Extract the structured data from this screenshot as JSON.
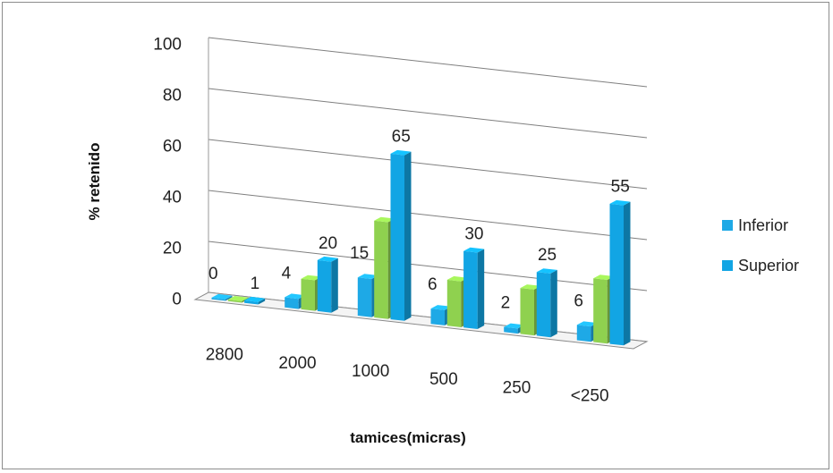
{
  "chart_data": {
    "type": "bar",
    "style": "3d-clustered-column",
    "categories": [
      "2800",
      "2000",
      "1000",
      "500",
      "250",
      "<250"
    ],
    "series": [
      {
        "name": "Inferior",
        "values": [
          0,
          4,
          15,
          6,
          2,
          6
        ],
        "color": "#1ea9e6"
      },
      {
        "name": "",
        "values": [
          0,
          12,
          38,
          18,
          18,
          25
        ],
        "color": "#8fd14f"
      },
      {
        "name": "Superior",
        "values": [
          1,
          20,
          65,
          30,
          25,
          55
        ],
        "color": "#12a5e4"
      }
    ],
    "data_labels": {
      "series_index": [
        0,
        2
      ],
      "values": [
        "0",
        "1",
        "4",
        "20",
        "15",
        "65",
        "6",
        "30",
        "2",
        "25",
        "6",
        "55"
      ]
    },
    "yticks": [
      "100",
      "80",
      "60",
      "40",
      "20",
      "0"
    ],
    "ylim": [
      0,
      100
    ],
    "xlabel": "tamices(micras)",
    "ylabel": "% retenido",
    "grid": true,
    "legend": {
      "position": "right",
      "entries": [
        {
          "label": "Inferior",
          "color": "#1ea9e6"
        },
        {
          "label": "Superior",
          "color": "#12a5e4"
        }
      ]
    }
  }
}
